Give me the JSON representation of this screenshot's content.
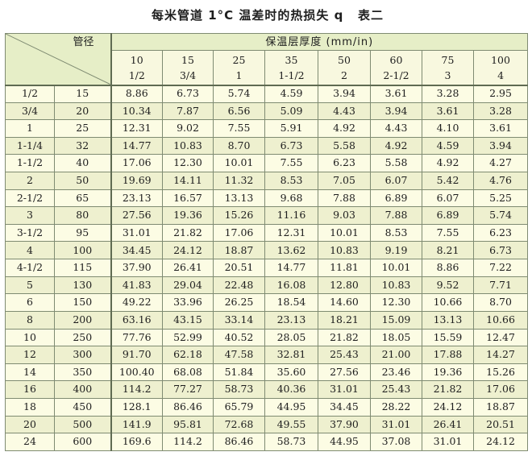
{
  "title": {
    "main": "每米管道 1°C 温差时的热损失 q",
    "table_no": "表二"
  },
  "table": {
    "corner_label": "管径",
    "header_group": "保温层厚度 (mm/in)",
    "thickness_mm": [
      "10",
      "15",
      "25",
      "35",
      "50",
      "60",
      "75",
      "100"
    ],
    "thickness_in": [
      "1/2",
      "3/4",
      "1",
      "1-1/2",
      "2",
      "2-1/2",
      "3",
      "4"
    ],
    "rows": [
      {
        "in": "1/2",
        "mm": "15",
        "v": [
          "8.86",
          "6.73",
          "5.74",
          "4.59",
          "3.94",
          "3.61",
          "3.28",
          "2.95"
        ]
      },
      {
        "in": "3/4",
        "mm": "20",
        "v": [
          "10.34",
          "7.87",
          "6.56",
          "5.09",
          "4.43",
          "3.94",
          "3.61",
          "3.28"
        ]
      },
      {
        "in": "1",
        "mm": "25",
        "v": [
          "12.31",
          "9.02",
          "7.55",
          "5.91",
          "4.92",
          "4.43",
          "4.10",
          "3.61"
        ]
      },
      {
        "in": "1-1/4",
        "mm": "32",
        "v": [
          "14.77",
          "10.83",
          "8.70",
          "6.73",
          "5.58",
          "4.92",
          "4.59",
          "3.94"
        ]
      },
      {
        "in": "1-1/2",
        "mm": "40",
        "v": [
          "17.06",
          "12.30",
          "10.01",
          "7.55",
          "6.23",
          "5.58",
          "4.92",
          "4.27"
        ]
      },
      {
        "in": "2",
        "mm": "50",
        "v": [
          "19.69",
          "14.11",
          "11.32",
          "8.53",
          "7.05",
          "6.07",
          "5.42",
          "4.76"
        ]
      },
      {
        "in": "2-1/2",
        "mm": "65",
        "v": [
          "23.13",
          "16.57",
          "13.13",
          "9.68",
          "7.88",
          "6.89",
          "6.07",
          "5.25"
        ]
      },
      {
        "in": "3",
        "mm": "80",
        "v": [
          "27.56",
          "19.36",
          "15.26",
          "11.16",
          "9.03",
          "7.88",
          "6.89",
          "5.74"
        ]
      },
      {
        "in": "3-1/2",
        "mm": "95",
        "v": [
          "31.01",
          "21.82",
          "17.06",
          "12.31",
          "10.01",
          "8.53",
          "7.55",
          "6.23"
        ]
      },
      {
        "in": "4",
        "mm": "100",
        "v": [
          "34.45",
          "24.12",
          "18.87",
          "13.62",
          "10.83",
          "9.19",
          "8.21",
          "6.73"
        ]
      },
      {
        "in": "4-1/2",
        "mm": "115",
        "v": [
          "37.90",
          "26.41",
          "20.51",
          "14.77",
          "11.81",
          "10.01",
          "8.86",
          "7.22"
        ]
      },
      {
        "in": "5",
        "mm": "130",
        "v": [
          "41.83",
          "29.04",
          "22.48",
          "16.08",
          "12.80",
          "10.83",
          "9.52",
          "7.71"
        ]
      },
      {
        "in": "6",
        "mm": "150",
        "v": [
          "49.22",
          "33.96",
          "26.25",
          "18.54",
          "14.60",
          "12.30",
          "10.66",
          "8.70"
        ]
      },
      {
        "in": "8",
        "mm": "200",
        "v": [
          "63.16",
          "43.15",
          "33.14",
          "23.13",
          "18.21",
          "15.09",
          "13.13",
          "10.66"
        ]
      },
      {
        "in": "10",
        "mm": "250",
        "v": [
          "77.76",
          "52.99",
          "40.52",
          "28.05",
          "21.82",
          "18.05",
          "15.59",
          "12.47"
        ]
      },
      {
        "in": "12",
        "mm": "300",
        "v": [
          "91.70",
          "62.18",
          "47.58",
          "32.81",
          "25.43",
          "21.00",
          "17.88",
          "14.27"
        ]
      },
      {
        "in": "14",
        "mm": "350",
        "v": [
          "100.40",
          "68.08",
          "51.84",
          "35.60",
          "27.56",
          "23.46",
          "19.36",
          "15.26"
        ]
      },
      {
        "in": "16",
        "mm": "400",
        "v": [
          "114.2",
          "77.27",
          "58.73",
          "40.36",
          "31.01",
          "25.43",
          "21.82",
          "17.06"
        ]
      },
      {
        "in": "18",
        "mm": "450",
        "v": [
          "128.1",
          "86.46",
          "65.79",
          "44.95",
          "34.45",
          "28.22",
          "24.12",
          "18.87"
        ]
      },
      {
        "in": "20",
        "mm": "500",
        "v": [
          "141.9",
          "95.81",
          "72.68",
          "49.55",
          "37.90",
          "31.01",
          "26.41",
          "20.51"
        ]
      },
      {
        "in": "24",
        "mm": "600",
        "v": [
          "169.6",
          "114.2",
          "86.46",
          "58.73",
          "44.95",
          "37.08",
          "31.01",
          "24.12"
        ]
      }
    ]
  },
  "colors": {
    "header_bg": "#e6eec7",
    "cell_bg": "#fcfce4",
    "border": "#7f8b72"
  }
}
